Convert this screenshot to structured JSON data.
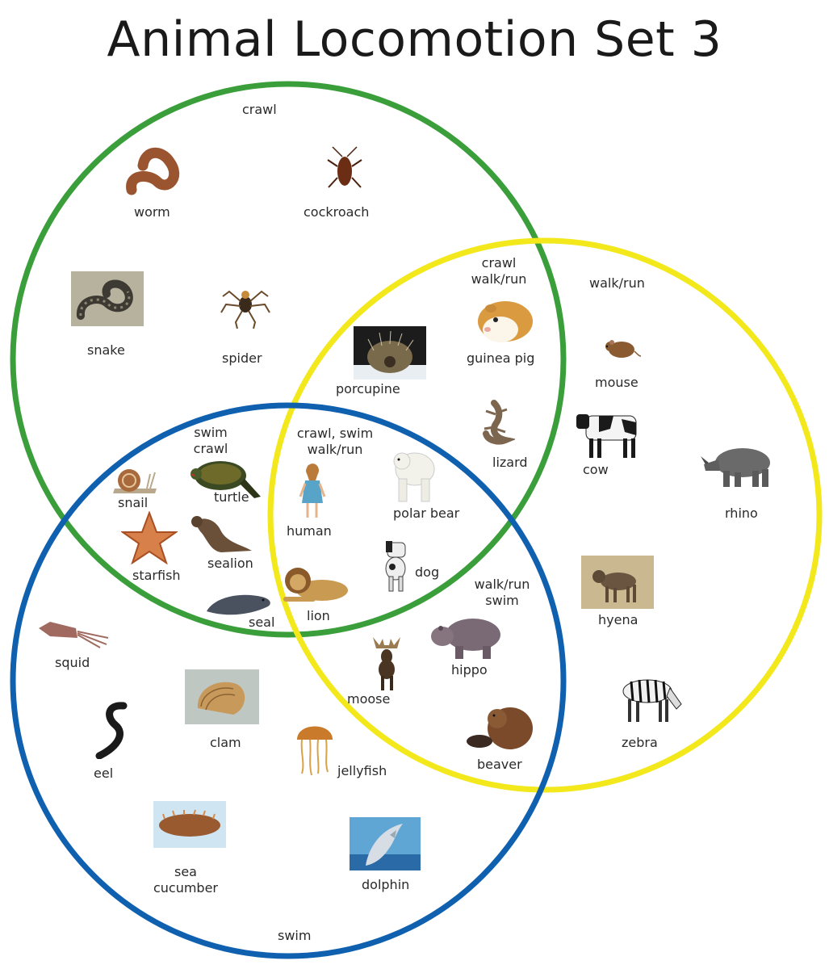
{
  "title": "Animal Locomotion Set 3",
  "colors": {
    "crawl_circle": "#3a9e3a",
    "walk_circle": "#f2e81c",
    "swim_circle": "#1060b0"
  },
  "regions": {
    "crawl": "crawl",
    "walk": "walk/run",
    "swim": "swim",
    "crawl_walk_line1": "crawl",
    "crawl_walk_line2": "walk/run",
    "swim_crawl_line1": "swim",
    "swim_crawl_line2": "crawl",
    "all_line1": "crawl, swim",
    "all_line2": "walk/run",
    "walk_swim_line1": "walk/run",
    "walk_swim_line2": "swim"
  },
  "animals": {
    "worm": "worm",
    "cockroach": "cockroach",
    "snake": "snake",
    "spider": "spider",
    "porcupine": "porcupine",
    "guinea_pig": "guinea pig",
    "lizard": "lizard",
    "mouse": "mouse",
    "cow": "cow",
    "rhino": "rhino",
    "hyena": "hyena",
    "zebra": "zebra",
    "snail": "snail",
    "turtle": "turtle",
    "starfish": "starfish",
    "sealion": "sealion",
    "seal": "seal",
    "human": "human",
    "polar_bear": "polar bear",
    "dog": "dog",
    "lion": "lion",
    "moose": "moose",
    "hippo": "hippo",
    "beaver": "beaver",
    "squid": "squid",
    "eel": "eel",
    "clam": "clam",
    "jellyfish": "jellyfish",
    "sea_cucumber_line1": "sea",
    "sea_cucumber_line2": "cucumber",
    "dolphin": "dolphin"
  }
}
